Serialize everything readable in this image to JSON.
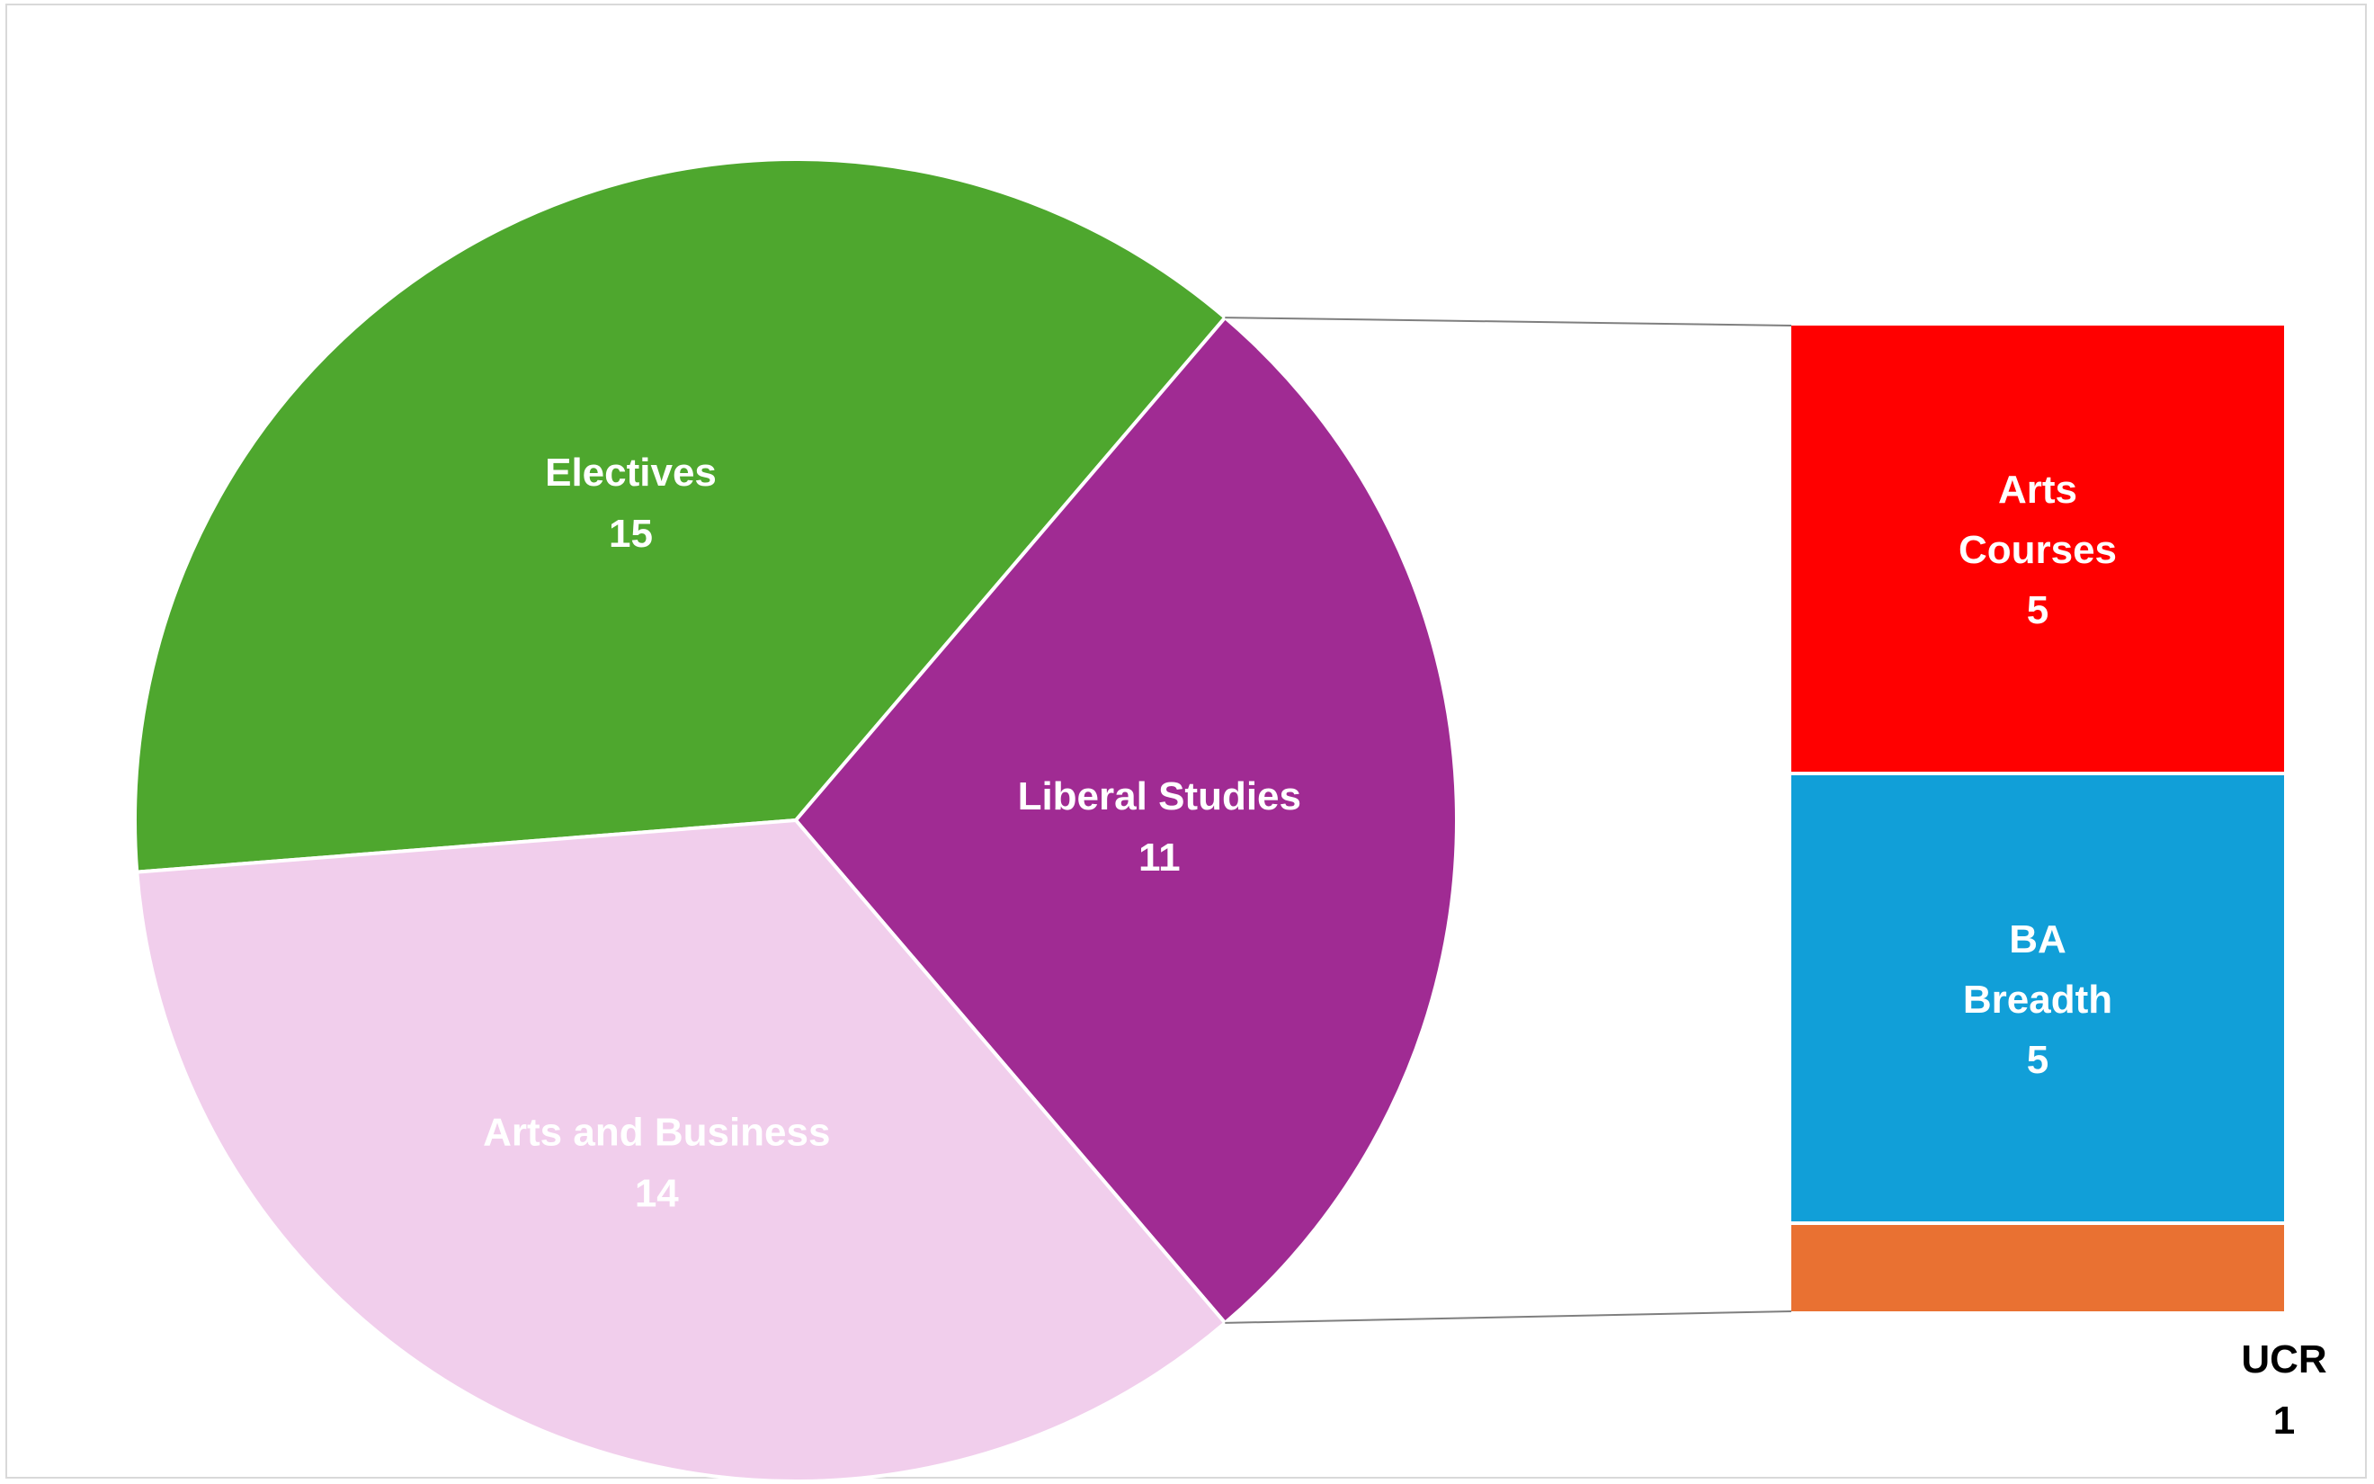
{
  "chart_data": {
    "type": "pie",
    "subtype": "bar-of-pie",
    "title": "",
    "pie_slices": [
      {
        "label": "Electives",
        "value": 15,
        "color": "#4ea72e"
      },
      {
        "label": "Liberal Studies",
        "value": 11,
        "color": "#a02b93"
      },
      {
        "label": "Arts and Business",
        "value": 14,
        "color": "#f1ceec"
      }
    ],
    "bar_breakdown": {
      "of_slice": "Liberal Studies",
      "segments": [
        {
          "label": "Arts Courses",
          "value": 5,
          "color": "#ff0000"
        },
        {
          "label": "BA Breadth",
          "value": 5,
          "color": "#119fd8"
        },
        {
          "label": "UCR",
          "value": 1,
          "color": "#e97132"
        }
      ]
    },
    "label_colors": {
      "inside": "#ffffff",
      "outside": "#000000"
    },
    "connector_color": "#7f7f7f",
    "legend": "none",
    "grid": false
  }
}
